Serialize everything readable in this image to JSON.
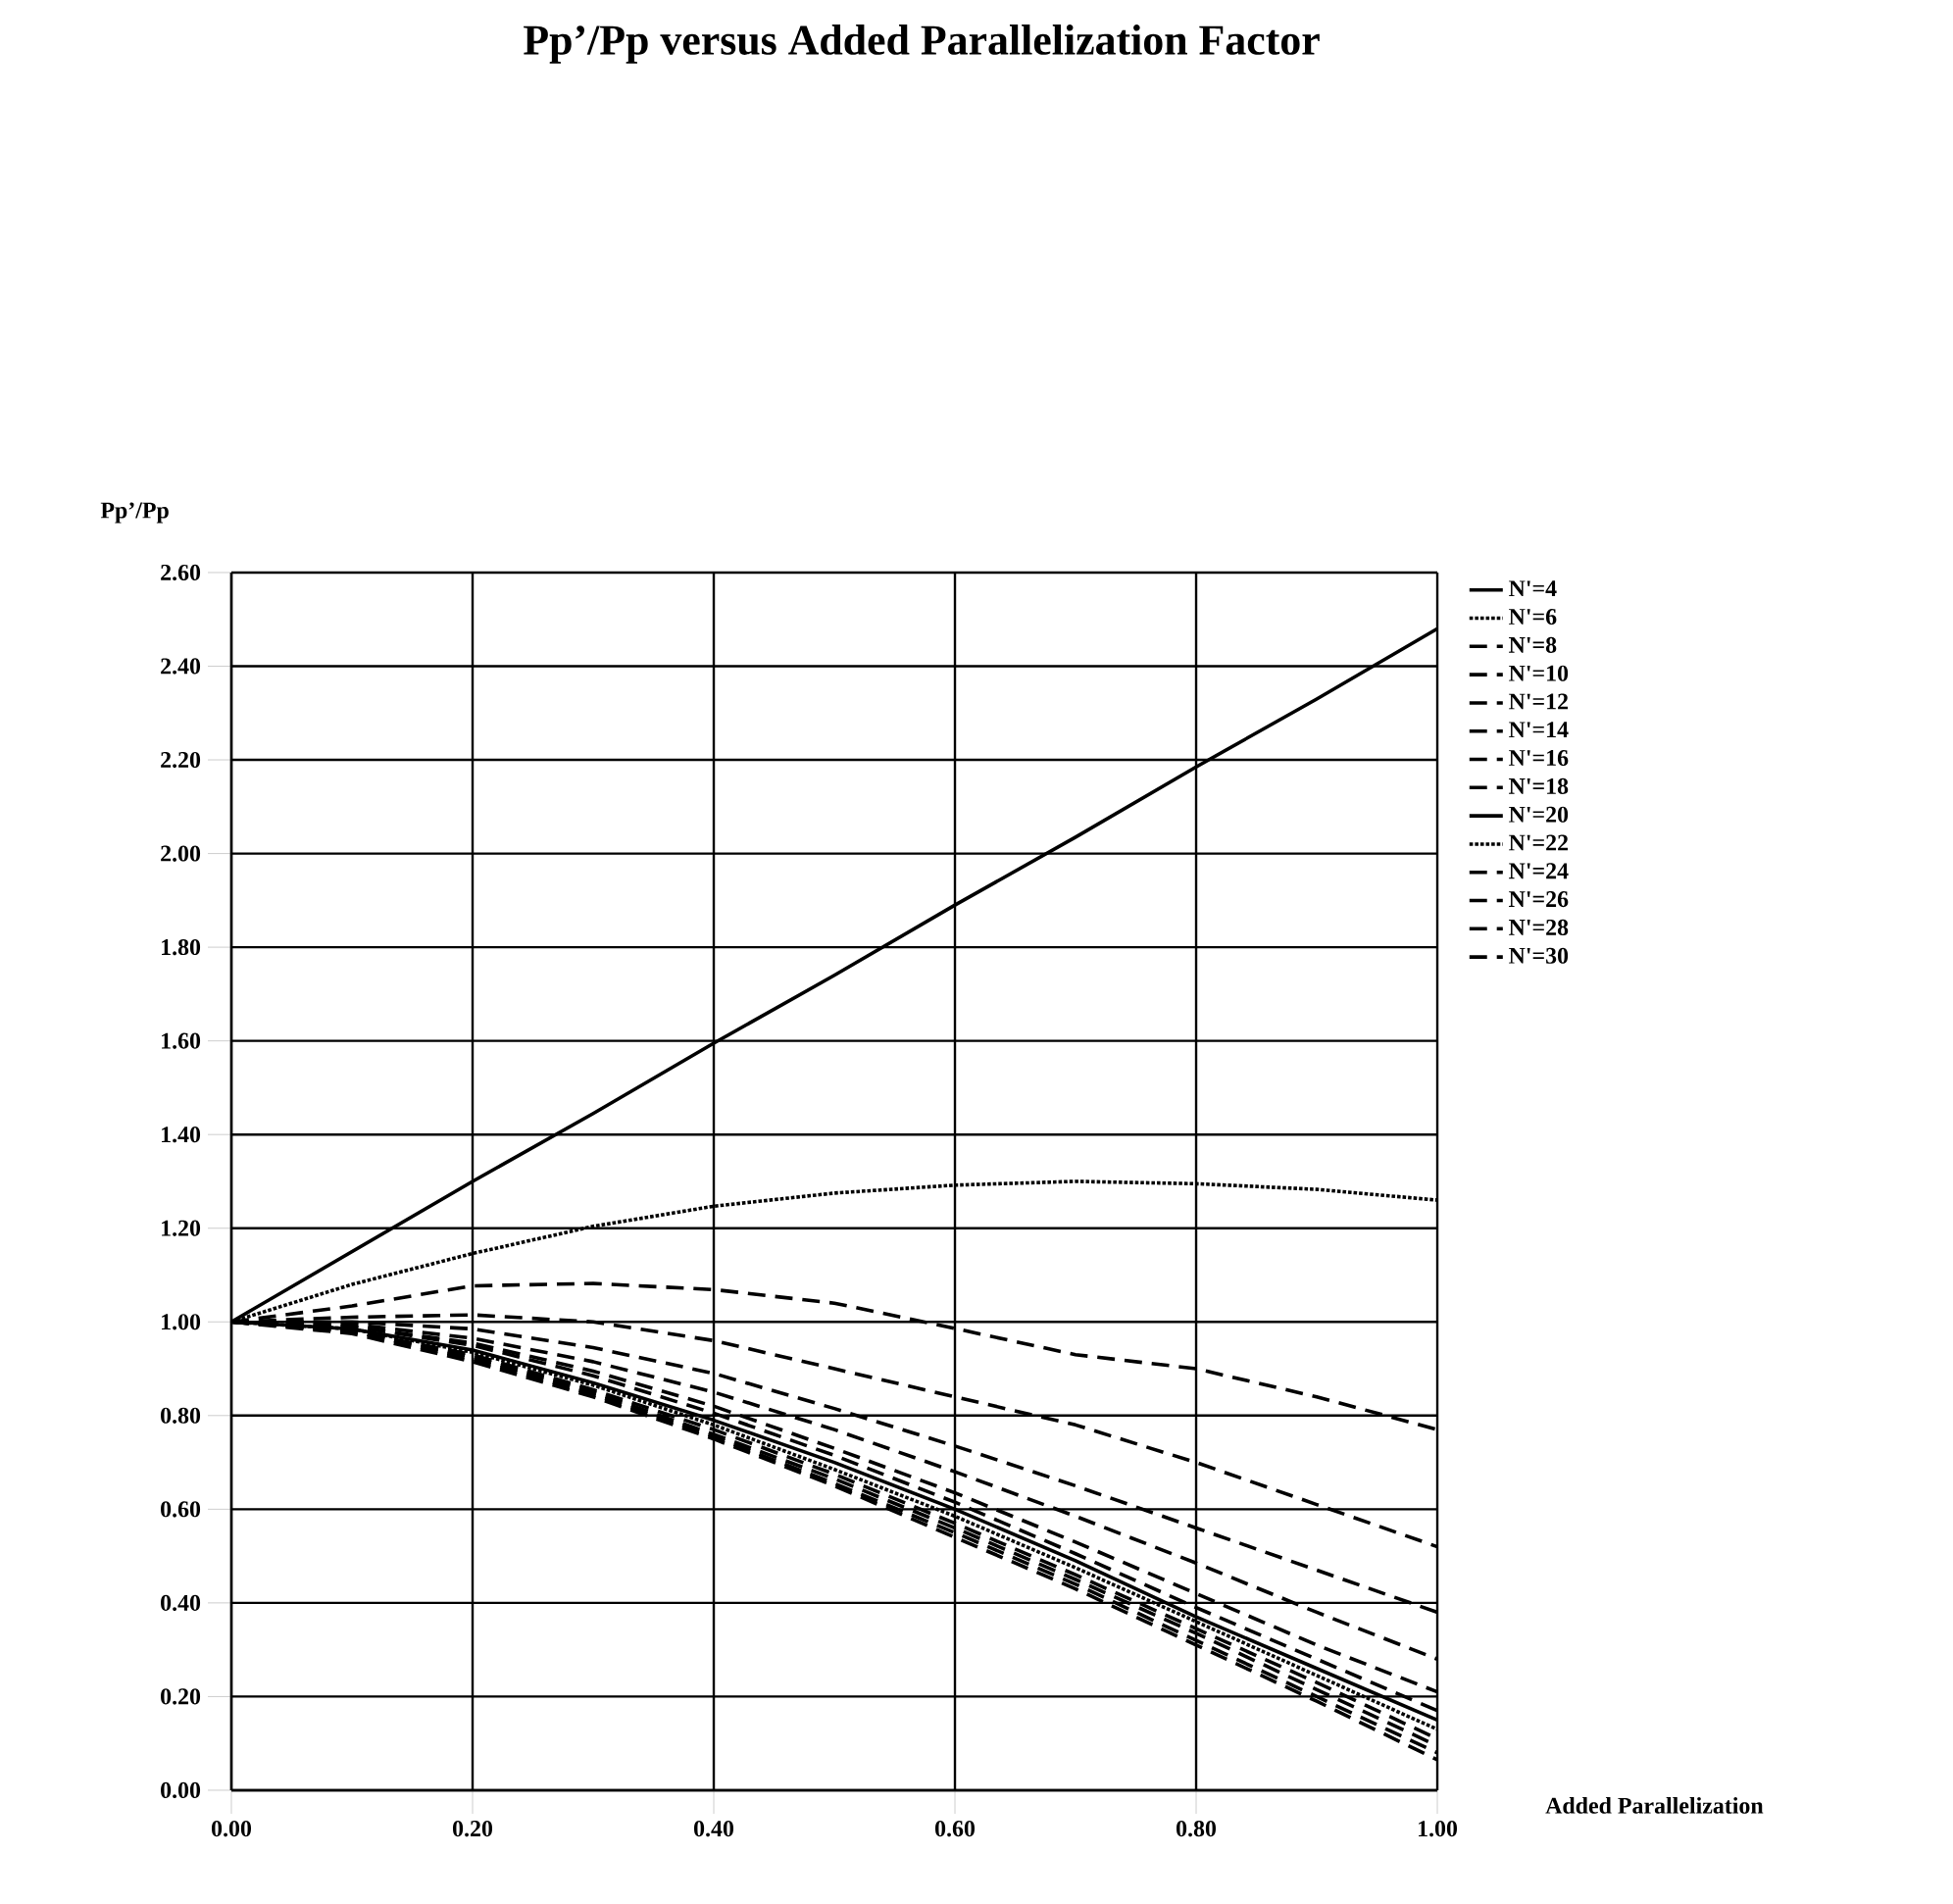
{
  "chart_data": {
    "type": "line",
    "title": "Pp’/Pp versus Added Parallelization Factor",
    "xlabel": "Added Parallelization",
    "ylabel": "Pp’/Pp",
    "x": [
      0,
      0.1,
      0.2,
      0.3,
      0.4,
      0.5,
      0.6,
      0.7,
      0.8,
      0.9,
      1.0
    ],
    "series": [
      {
        "name": "N'=4",
        "color": "#000000",
        "line_style": "solid",
        "values": [
          1.0,
          1.15,
          1.3,
          1.445,
          1.595,
          1.74,
          1.89,
          2.035,
          2.185,
          2.33,
          2.48
        ]
      },
      {
        "name": "N'=6",
        "color": "#000000",
        "line_style": "dotted",
        "values": [
          1.0,
          1.08,
          1.146,
          1.204,
          1.247,
          1.275,
          1.292,
          1.3,
          1.295,
          1.283,
          1.26
        ]
      },
      {
        "name": "N'=8",
        "color": "#000000",
        "line_style": "dashed",
        "values": [
          1.0,
          1.034,
          1.077,
          1.082,
          1.069,
          1.04,
          0.986,
          0.93,
          0.9,
          0.84,
          0.77
        ]
      },
      {
        "name": "N'=10",
        "color": "#000000",
        "line_style": "dashed",
        "values": [
          1.0,
          1.01,
          1.015,
          1.0,
          0.96,
          0.9,
          0.84,
          0.78,
          0.7,
          0.61,
          0.52
        ]
      },
      {
        "name": "N'=12",
        "color": "#000000",
        "line_style": "dashed",
        "values": [
          1.0,
          1.0,
          0.985,
          0.945,
          0.89,
          0.815,
          0.735,
          0.65,
          0.56,
          0.47,
          0.38
        ]
      },
      {
        "name": "N'=14",
        "color": "#000000",
        "line_style": "dashed",
        "values": [
          1.0,
          0.995,
          0.965,
          0.915,
          0.85,
          0.77,
          0.68,
          0.585,
          0.485,
          0.38,
          0.28
        ]
      },
      {
        "name": "N'=16",
        "color": "#000000",
        "line_style": "dashed",
        "values": [
          1.0,
          0.99,
          0.955,
          0.895,
          0.82,
          0.73,
          0.635,
          0.53,
          0.42,
          0.31,
          0.21
        ]
      },
      {
        "name": "N'=18",
        "color": "#000000",
        "line_style": "dashed",
        "values": [
          1.0,
          0.99,
          0.95,
          0.885,
          0.805,
          0.715,
          0.615,
          0.505,
          0.39,
          0.28,
          0.17
        ]
      },
      {
        "name": "N'=20",
        "color": "#000000",
        "line_style": "solid",
        "values": [
          1.0,
          0.985,
          0.94,
          0.87,
          0.79,
          0.7,
          0.6,
          0.49,
          0.37,
          0.26,
          0.15
        ]
      },
      {
        "name": "N'=22",
        "color": "#000000",
        "line_style": "dotted",
        "values": [
          1.0,
          0.985,
          0.935,
          0.865,
          0.78,
          0.685,
          0.585,
          0.475,
          0.36,
          0.245,
          0.13
        ]
      },
      {
        "name": "N'=24",
        "color": "#000000",
        "line_style": "dashed",
        "values": [
          1.0,
          0.98,
          0.93,
          0.855,
          0.77,
          0.675,
          0.57,
          0.46,
          0.345,
          0.23,
          0.11
        ]
      },
      {
        "name": "N'=26",
        "color": "#000000",
        "line_style": "dashed",
        "values": [
          1.0,
          0.98,
          0.925,
          0.85,
          0.76,
          0.665,
          0.56,
          0.45,
          0.335,
          0.215,
          0.095
        ]
      },
      {
        "name": "N'=28",
        "color": "#000000",
        "line_style": "dashed",
        "values": [
          1.0,
          0.98,
          0.92,
          0.845,
          0.755,
          0.655,
          0.55,
          0.44,
          0.32,
          0.2,
          0.08
        ]
      },
      {
        "name": "N'=30",
        "color": "#000000",
        "line_style": "dashed",
        "values": [
          1.0,
          0.975,
          0.915,
          0.84,
          0.75,
          0.65,
          0.54,
          0.43,
          0.31,
          0.19,
          0.065
        ]
      }
    ],
    "xlim": [
      0,
      1
    ],
    "ylim": [
      0,
      2.6
    ],
    "xticks": [
      {
        "value": 0,
        "label": "0.00"
      },
      {
        "value": 0.2,
        "label": "0.20"
      },
      {
        "value": 0.4,
        "label": "0.40"
      },
      {
        "value": 0.6,
        "label": "0.60"
      },
      {
        "value": 0.8,
        "label": "0.80"
      },
      {
        "value": 1,
        "label": "1.00"
      }
    ],
    "yticks": [
      {
        "value": 0,
        "label": "0.00"
      },
      {
        "value": 0.2,
        "label": "0.20"
      },
      {
        "value": 0.4,
        "label": "0.40"
      },
      {
        "value": 0.6,
        "label": "0.60"
      },
      {
        "value": 0.8,
        "label": "0.80"
      },
      {
        "value": 1,
        "label": "1.00"
      },
      {
        "value": 1.2,
        "label": "1.20"
      },
      {
        "value": 1.4,
        "label": "1.40"
      },
      {
        "value": 1.6,
        "label": "1.60"
      },
      {
        "value": 1.8,
        "label": "1.80"
      },
      {
        "value": 2,
        "label": "2.00"
      },
      {
        "value": 2.2,
        "label": "2.20"
      },
      {
        "value": 2.4,
        "label": "2.40"
      },
      {
        "value": 2.6,
        "label": "2.60"
      }
    ],
    "grid": true,
    "legend": "right"
  }
}
